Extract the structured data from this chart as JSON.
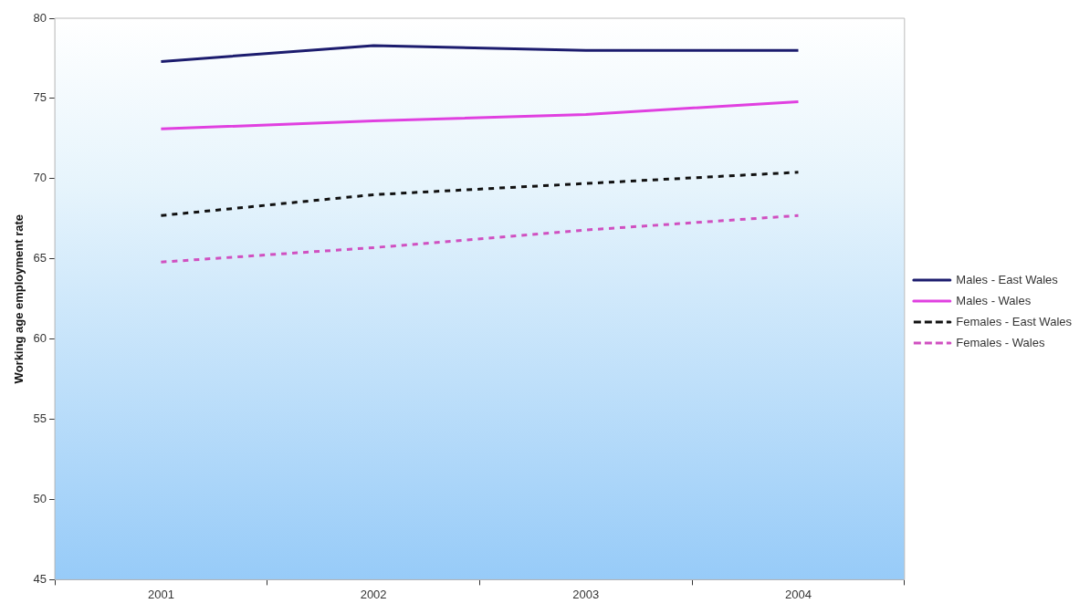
{
  "chart_data": {
    "type": "line",
    "ylabel": "Working age employment rate",
    "categories": [
      "2001",
      "2002",
      "2003",
      "2004"
    ],
    "series": [
      {
        "name": "Males - East Wales",
        "color": "#1c1c6e",
        "line_style": "solid",
        "values": [
          77.3,
          78.3,
          78.0,
          78.0
        ]
      },
      {
        "name": "Males - Wales",
        "color": "#e040e0",
        "line_style": "solid",
        "values": [
          73.1,
          73.6,
          74.0,
          74.8
        ]
      },
      {
        "name": "Females - East Wales",
        "color": "#111111",
        "line_style": "dashed",
        "values": [
          67.7,
          69.0,
          69.7,
          70.4
        ]
      },
      {
        "name": "Females - Wales",
        "color": "#d050c0",
        "line_style": "dashed",
        "values": [
          64.8,
          65.7,
          66.8,
          67.7
        ]
      }
    ],
    "ylim": [
      45,
      80
    ],
    "yticks": [
      45,
      50,
      55,
      60,
      65,
      70,
      75,
      80
    ],
    "grid": false,
    "legend": "right",
    "marker": "none"
  }
}
